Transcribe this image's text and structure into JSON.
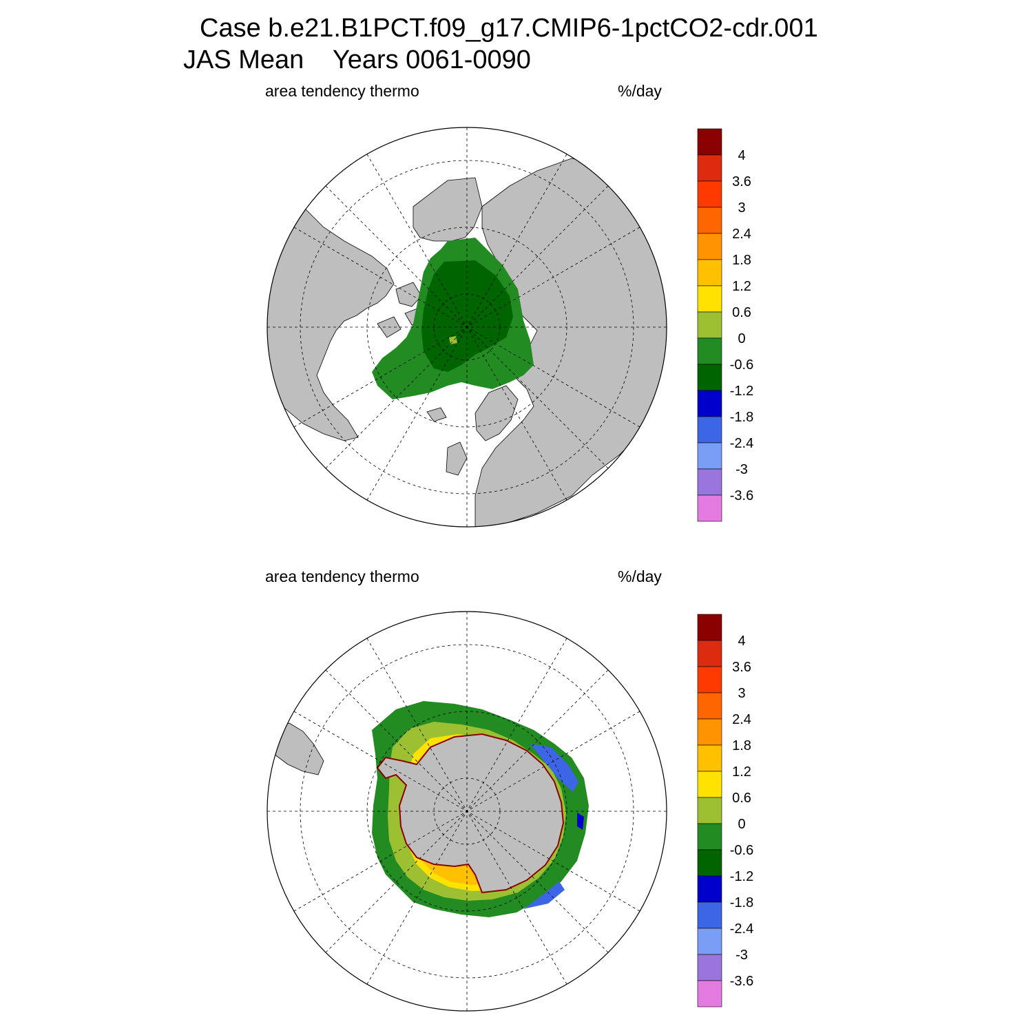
{
  "title": {
    "line1": "Case b.e21.B1PCT.f09_g17.CMIP6-1pctCO2-cdr.001",
    "line2": "JAS Mean    Years 0061-0090"
  },
  "panels": [
    {
      "id": "north",
      "hemisphere": "north",
      "left_label": "area tendency thermo",
      "right_label": "%/day"
    },
    {
      "id": "south",
      "hemisphere": "south",
      "left_label": "area tendency thermo",
      "right_label": "%/day"
    }
  ],
  "colorbar": {
    "levels": [
      "4",
      "3.6",
      "3",
      "2.4",
      "1.8",
      "1.2",
      "0.6",
      "0",
      "-0.6",
      "-1.2",
      "-1.8",
      "-2.4",
      "-3",
      "-3.6"
    ],
    "colors": [
      "#8b0000",
      "#dd2b0f",
      "#ff3a00",
      "#ff6600",
      "#ff9400",
      "#ffc000",
      "#ffe200",
      "#9cc032",
      "#228b22",
      "#006400",
      "#0000cd",
      "#3d66e6",
      "#7a9ef5",
      "#9a75dd",
      "#e47be0"
    ]
  },
  "colors": {
    "land": "#bebebe",
    "ocean": "#ffffff",
    "grid": "#000000"
  }
}
